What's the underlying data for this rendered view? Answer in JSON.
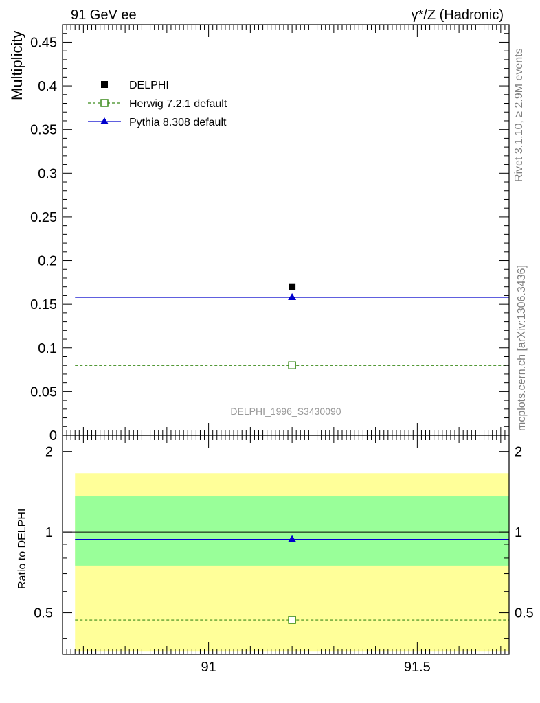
{
  "header": {
    "left_label": "91 GeV ee",
    "right_label": "γ*/Z (Hadronic)"
  },
  "side_labels": {
    "rivet": "Rivet 3.1.10, ≥ 2.9M events",
    "mcplots": "mcplots.cern.ch [arXiv:1306.3436]"
  },
  "colors": {
    "data": "#000000",
    "herwig": "#3a8a1a",
    "pythia": "#0000cc",
    "band_inner": "#99ff99",
    "band_outer": "#ffff99",
    "watermark": "#999999"
  },
  "chart_data": [
    {
      "type": "scatter",
      "ylabel": "Multiplicity",
      "watermark": "DELPHI_1996_S3430090",
      "xlim": [
        90.65,
        91.72
      ],
      "ylim": [
        0,
        0.47
      ],
      "yticks": [
        0,
        0.05,
        0.1,
        0.15,
        0.2,
        0.25,
        0.3,
        0.35,
        0.4,
        0.45
      ],
      "ytick_labels": [
        "0",
        "0.05",
        "0.1",
        "0.15",
        "0.2",
        "0.25",
        "0.3",
        "0.35",
        "0.4",
        "0.45"
      ],
      "grid": false,
      "legend_position": "top-left",
      "legend": [
        "DELPHI",
        "Herwig 7.2.1 default",
        "Pythia 8.308 default"
      ],
      "series": [
        {
          "name": "DELPHI",
          "marker": "filled-square",
          "x": [
            91.2
          ],
          "y": [
            0.17
          ]
        },
        {
          "name": "Herwig 7.2.1 default",
          "marker": "open-square",
          "style": "dashed",
          "x": [
            91.2
          ],
          "y": [
            0.08
          ],
          "bin": [
            90.68,
            91.72
          ]
        },
        {
          "name": "Pythia 8.308 default",
          "marker": "filled-triangle",
          "style": "solid",
          "x": [
            91.2
          ],
          "y": [
            0.158
          ],
          "bin": [
            90.68,
            91.72
          ]
        }
      ]
    },
    {
      "type": "scatter",
      "ylabel": "Ratio to DELPHI",
      "xlim": [
        90.65,
        91.72
      ],
      "ylim": [
        0.35,
        2.3
      ],
      "yscale": "log",
      "yticks": [
        0.5,
        1,
        2
      ],
      "ytick_labels": [
        "0.5",
        "1",
        "2"
      ],
      "xticks": [
        91,
        91.5
      ],
      "xtick_labels": [
        "91",
        "91.5"
      ],
      "bands": [
        {
          "kind": "outer",
          "x": [
            90.68,
            91.72
          ],
          "ylow": 0.36,
          "yhigh": 1.66
        },
        {
          "kind": "inner",
          "x": [
            90.68,
            91.72
          ],
          "ylow": 0.75,
          "yhigh": 1.36
        }
      ],
      "reference_line": 1,
      "series": [
        {
          "name": "Herwig 7.2.1 default",
          "marker": "open-square",
          "style": "dashed",
          "x": [
            91.2
          ],
          "y": [
            0.47
          ]
        },
        {
          "name": "Pythia 8.308 default",
          "marker": "filled-triangle",
          "style": "solid",
          "x": [
            91.2
          ],
          "y": [
            0.94
          ]
        }
      ]
    }
  ]
}
